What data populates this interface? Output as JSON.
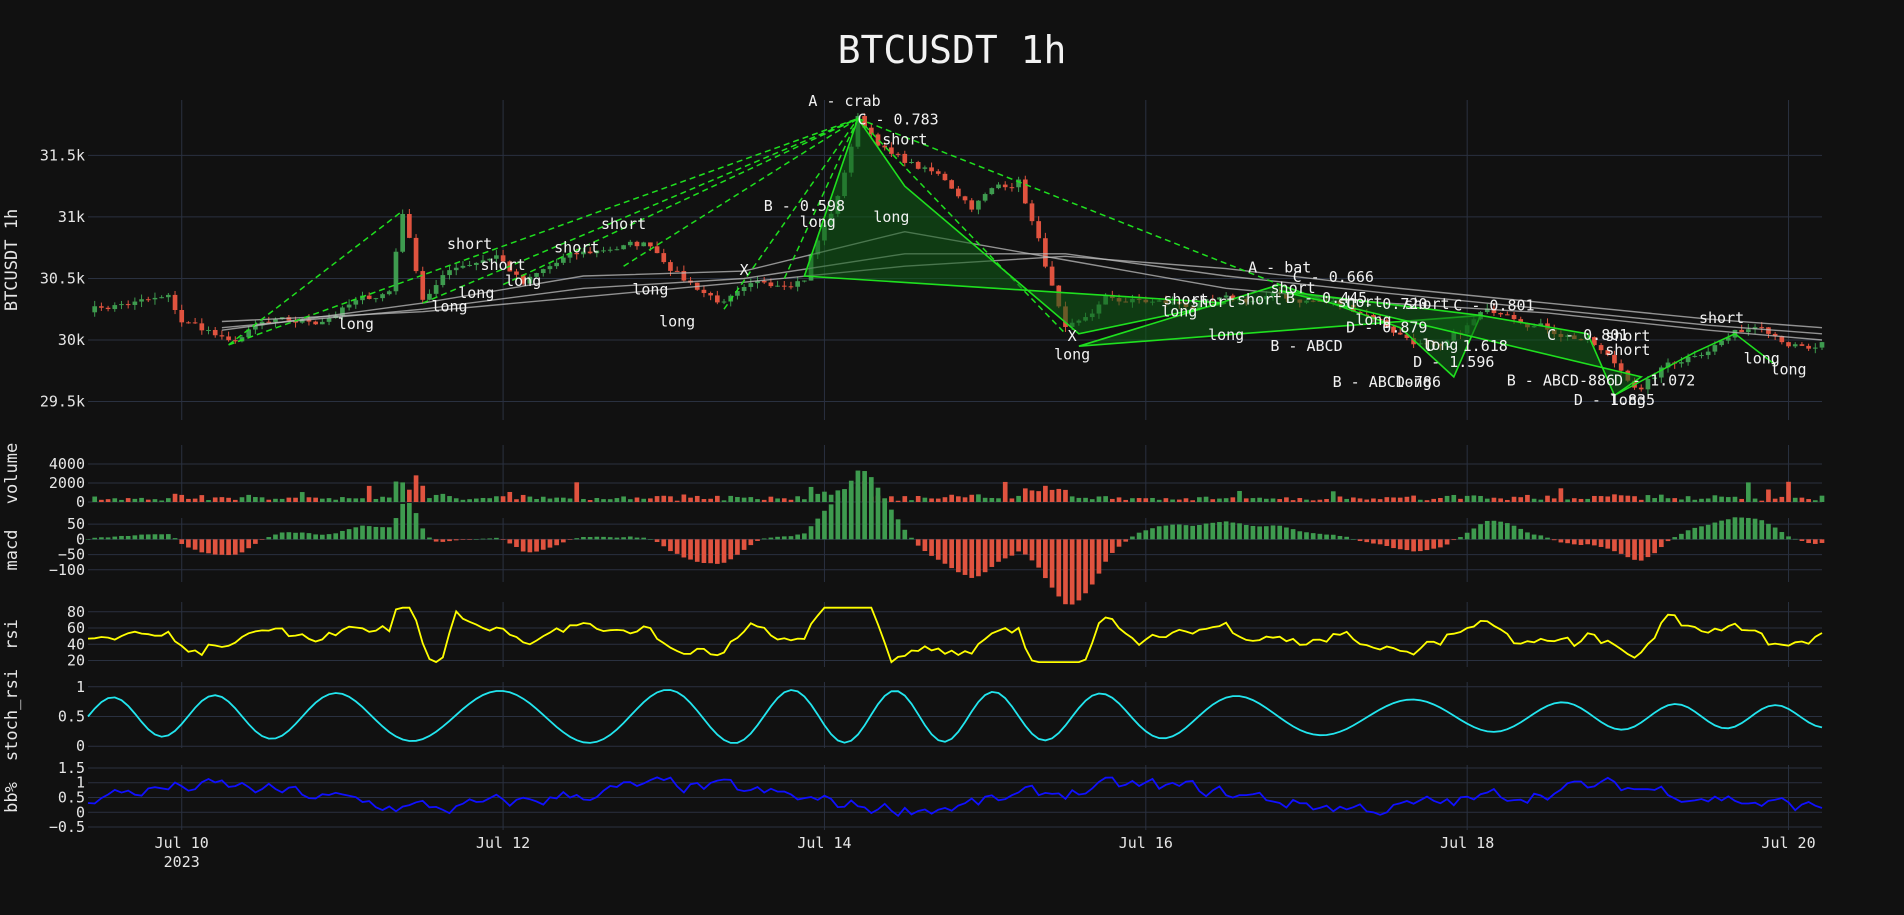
{
  "title": "BTCUSDT 1h",
  "colors": {
    "background": "#111111",
    "grid": "#2a3140",
    "up": "#3e9b4f",
    "down": "#e0533f",
    "pattern": "#1fe01f",
    "pattern_fill": "#0e5f15",
    "ma": "#bdbdbd",
    "rsi": "#ffff00",
    "stoch_rsi": "#22e6ef",
    "bb": "#1010ff"
  },
  "chart_data": {
    "type": "line",
    "x_range": [
      "2023-07-09T10:00",
      "2023-07-20T05:00"
    ],
    "x_ticks": [
      {
        "date": "2023-07-10",
        "label": "Jul 10",
        "sublabel": "2023"
      },
      {
        "date": "2023-07-12",
        "label": "Jul 12"
      },
      {
        "date": "2023-07-14",
        "label": "Jul 14"
      },
      {
        "date": "2023-07-16",
        "label": "Jul 16"
      },
      {
        "date": "2023-07-18",
        "label": "Jul 18"
      },
      {
        "date": "2023-07-20",
        "label": "Jul 20"
      }
    ],
    "panels": [
      {
        "id": "price",
        "ylabel": "BTCUSDT 1h",
        "ylim": [
          29350,
          31950
        ],
        "ticks": [
          {
            "v": 29500,
            "t": "29.5k"
          },
          {
            "v": 30000,
            "t": "30k"
          },
          {
            "v": 30500,
            "t": "30.5k"
          },
          {
            "v": 31000,
            "t": "31k"
          },
          {
            "v": 31500,
            "t": "31.5k"
          }
        ]
      },
      {
        "id": "volume",
        "ylabel": "volume",
        "ylim": [
          0,
          6000
        ],
        "ticks": [
          {
            "v": 0,
            "t": "0"
          },
          {
            "v": 2000,
            "t": "2000"
          },
          {
            "v": 4000,
            "t": "4000"
          }
        ]
      },
      {
        "id": "macd",
        "ylabel": "macd",
        "ylim": [
          -140,
          70
        ],
        "ticks": [
          {
            "v": -100,
            "t": "−100"
          },
          {
            "v": -50,
            "t": "−50"
          },
          {
            "v": 0,
            "t": "0"
          },
          {
            "v": 50,
            "t": "50"
          }
        ]
      },
      {
        "id": "rsi",
        "ylabel": "rsi",
        "ylim": [
          12,
          92
        ],
        "ticks": [
          {
            "v": 20,
            "t": "20"
          },
          {
            "v": 40,
            "t": "40"
          },
          {
            "v": 60,
            "t": "60"
          },
          {
            "v": 80,
            "t": "80"
          }
        ]
      },
      {
        "id": "stoch_rsi",
        "ylabel": "stoch_rsi",
        "ylim": [
          -0.03,
          1.08
        ],
        "ticks": [
          {
            "v": 0,
            "t": "0"
          },
          {
            "v": 0.5,
            "t": "0.5"
          },
          {
            "v": 1,
            "t": "1"
          }
        ]
      },
      {
        "id": "bb",
        "ylabel": "bb%",
        "ylim": [
          -0.6,
          1.6
        ],
        "ticks": [
          {
            "v": -0.5,
            "t": "−0.5"
          },
          {
            "v": 0,
            "t": "0"
          },
          {
            "v": 0.5,
            "t": "0.5"
          },
          {
            "v": 1,
            "t": "1"
          },
          {
            "v": 1.5,
            "t": "1.5"
          }
        ]
      }
    ],
    "price_path": [
      [
        "2023-07-09T10:00",
        30260
      ],
      [
        "2023-07-09T22:00",
        30330
      ],
      [
        "2023-07-10T00:00",
        30150
      ],
      [
        "2023-07-10T04:00",
        30080
      ],
      [
        "2023-07-10T07:00",
        29960
      ],
      [
        "2023-07-10T12:00",
        30120
      ],
      [
        "2023-07-10T20:00",
        30150
      ],
      [
        "2023-07-11T02:00",
        30300
      ],
      [
        "2023-07-11T07:00",
        30400
      ],
      [
        "2023-07-11T09:00",
        31050
      ],
      [
        "2023-07-11T12:00",
        30350
      ],
      [
        "2023-07-11T17:00",
        30600
      ],
      [
        "2023-07-11T23:00",
        30700
      ],
      [
        "2023-07-12T03:00",
        30450
      ],
      [
        "2023-07-12T09:00",
        30650
      ],
      [
        "2023-07-12T16:00",
        30750
      ],
      [
        "2023-07-12T22:00",
        30780
      ],
      [
        "2023-07-13T03:00",
        30500
      ],
      [
        "2023-07-13T09:00",
        30300
      ],
      [
        "2023-07-13T15:00",
        30450
      ],
      [
        "2023-07-13T21:00",
        30520
      ],
      [
        "2023-07-13T22:00",
        30700
      ],
      [
        "2023-07-14T02:00",
        31150
      ],
      [
        "2023-07-14T05:00",
        31800
      ],
      [
        "2023-07-14T10:00",
        31500
      ],
      [
        "2023-07-14T18:00",
        31300
      ],
      [
        "2023-07-14T22:00",
        31100
      ],
      [
        "2023-07-15T02:00",
        31250
      ],
      [
        "2023-07-15T05:00",
        31300
      ],
      [
        "2023-07-15T08:00",
        30800
      ],
      [
        "2023-07-15T12:00",
        30050
      ],
      [
        "2023-07-15T14:00",
        30100
      ],
      [
        "2023-07-15T18:00",
        30330
      ],
      [
        "2023-07-16T02:00",
        30300
      ],
      [
        "2023-07-16T08:00",
        30280
      ],
      [
        "2023-07-16T20:00",
        30350
      ],
      [
        "2023-07-17T04:00",
        30300
      ],
      [
        "2023-07-17T10:00",
        30200
      ],
      [
        "2023-07-17T14:00",
        30050
      ],
      [
        "2023-07-17T20:00",
        29900
      ],
      [
        "2023-07-18T02:00",
        30200
      ],
      [
        "2023-07-18T06:00",
        30250
      ],
      [
        "2023-07-18T12:00",
        30100
      ],
      [
        "2023-07-18T18:00",
        30000
      ],
      [
        "2023-07-18T22:00",
        29800
      ],
      [
        "2023-07-19T02:00",
        29600
      ],
      [
        "2023-07-19T06:00",
        29800
      ],
      [
        "2023-07-19T10:00",
        29900
      ],
      [
        "2023-07-19T16:00",
        30050
      ],
      [
        "2023-07-19T20:00",
        30150
      ],
      [
        "2023-07-20T00:00",
        30000
      ],
      [
        "2023-07-20T03:00",
        29900
      ],
      [
        "2023-07-20T05:00",
        29950
      ]
    ],
    "moving_averages": [
      {
        "points": [
          [
            "2023-07-10T06:00",
            30080
          ],
          [
            "2023-07-11T12:00",
            30300
          ],
          [
            "2023-07-12T12:00",
            30520
          ],
          [
            "2023-07-13T12:00",
            30560
          ],
          [
            "2023-07-14T12:00",
            30880
          ],
          [
            "2023-07-15T12:00",
            30650
          ],
          [
            "2023-07-16T12:00",
            30420
          ],
          [
            "2023-07-17T12:00",
            30300
          ],
          [
            "2023-07-18T12:00",
            30220
          ],
          [
            "2023-07-19T12:00",
            30080
          ],
          [
            "2023-07-20T05:00",
            30000
          ]
        ]
      },
      {
        "points": [
          [
            "2023-07-10T06:00",
            30100
          ],
          [
            "2023-07-11T12:00",
            30250
          ],
          [
            "2023-07-12T12:00",
            30420
          ],
          [
            "2023-07-13T12:00",
            30500
          ],
          [
            "2023-07-14T12:00",
            30700
          ],
          [
            "2023-07-15T12:00",
            30700
          ],
          [
            "2023-07-16T12:00",
            30520
          ],
          [
            "2023-07-17T12:00",
            30380
          ],
          [
            "2023-07-18T12:00",
            30250
          ],
          [
            "2023-07-19T12:00",
            30120
          ],
          [
            "2023-07-20T05:00",
            30050
          ]
        ]
      },
      {
        "points": [
          [
            "2023-07-10T06:00",
            30150
          ],
          [
            "2023-07-11T12:00",
            30230
          ],
          [
            "2023-07-12T12:00",
            30350
          ],
          [
            "2023-07-13T12:00",
            30470
          ],
          [
            "2023-07-14T12:00",
            30600
          ],
          [
            "2023-07-15T12:00",
            30680
          ],
          [
            "2023-07-16T12:00",
            30580
          ],
          [
            "2023-07-17T12:00",
            30430
          ],
          [
            "2023-07-18T12:00",
            30300
          ],
          [
            "2023-07-19T12:00",
            30170
          ],
          [
            "2023-07-20T05:00",
            30100
          ]
        ]
      }
    ],
    "patterns": [
      {
        "style": "dashed",
        "filled": false,
        "points": [
          [
            "2023-07-10T07:00",
            29960
          ],
          [
            "2023-07-14T05:00",
            31800
          ]
        ]
      },
      {
        "style": "dashed",
        "filled": false,
        "points": [
          [
            "2023-07-10T07:00",
            29960
          ],
          [
            "2023-07-11T09:00",
            31050
          ]
        ]
      },
      {
        "style": "dashed",
        "filled": false,
        "points": [
          [
            "2023-07-11T12:00",
            30300
          ],
          [
            "2023-07-14T05:00",
            31800
          ]
        ]
      },
      {
        "style": "dashed",
        "filled": false,
        "points": [
          [
            "2023-07-12T00:00",
            30450
          ],
          [
            "2023-07-14T05:00",
            31800
          ]
        ]
      },
      {
        "style": "dashed",
        "filled": false,
        "points": [
          [
            "2023-07-12T18:00",
            30600
          ],
          [
            "2023-07-14T05:00",
            31800
          ]
        ]
      },
      {
        "style": "dashed",
        "filled": false,
        "points": [
          [
            "2023-07-13T09:00",
            30250
          ],
          [
            "2023-07-14T05:00",
            31800
          ]
        ]
      },
      {
        "style": "dashed",
        "filled": false,
        "points": [
          [
            "2023-07-13T18:00",
            30500
          ],
          [
            "2023-07-14T05:00",
            31800
          ]
        ]
      },
      {
        "style": "dashed",
        "filled": false,
        "points": [
          [
            "2023-07-14T05:00",
            31800
          ],
          [
            "2023-07-15T12:00",
            30050
          ]
        ]
      },
      {
        "style": "dashed",
        "filled": false,
        "points": [
          [
            "2023-07-14T05:00",
            31800
          ],
          [
            "2023-07-16T20:00",
            30450
          ]
        ]
      },
      {
        "style": "solid",
        "filled": true,
        "points": [
          [
            "2023-07-13T21:00",
            30520
          ],
          [
            "2023-07-14T05:00",
            31800
          ],
          [
            "2023-07-14T12:00",
            31250
          ],
          [
            "2023-07-15T14:00",
            30050
          ],
          [
            "2023-07-16T12:00",
            30300
          ]
        ]
      },
      {
        "style": "solid",
        "filled": true,
        "points": [
          [
            "2023-07-15T14:00",
            29950
          ],
          [
            "2023-07-16T20:00",
            30450
          ],
          [
            "2023-07-17T14:00",
            30100
          ],
          [
            "2023-07-17T22:00",
            29700
          ],
          [
            "2023-07-18T02:00",
            30200
          ]
        ]
      },
      {
        "style": "solid",
        "filled": true,
        "points": [
          [
            "2023-07-16T20:00",
            30400
          ],
          [
            "2023-07-18T02:00",
            30200
          ],
          [
            "2023-07-18T18:00",
            30050
          ],
          [
            "2023-07-18T22:00",
            29550
          ],
          [
            "2023-07-19T02:00",
            29700
          ]
        ]
      },
      {
        "style": "solid",
        "filled": false,
        "points": [
          [
            "2023-07-18T22:00",
            29550
          ],
          [
            "2023-07-19T10:00",
            29900
          ],
          [
            "2023-07-19T16:00",
            30050
          ],
          [
            "2023-07-19T22:00",
            29800
          ]
        ]
      }
    ],
    "annotations": [
      {
        "t": "2023-07-14T03:00",
        "v": 31900,
        "text": "A - crab"
      },
      {
        "t": "2023-07-14T11:00",
        "v": 31750,
        "text": "C - 0.783"
      },
      {
        "t": "2023-07-14T12:00",
        "v": 31590,
        "text": "short"
      },
      {
        "t": "2023-07-13T21:00",
        "v": 31050,
        "text": "B - 0.598"
      },
      {
        "t": "2023-07-13T23:00",
        "v": 30920,
        "text": "long"
      },
      {
        "t": "2023-07-14T10:00",
        "v": 30960,
        "text": "long"
      },
      {
        "t": "2023-07-11T19:00",
        "v": 30740,
        "text": "short"
      },
      {
        "t": "2023-07-12T00:00",
        "v": 30570,
        "text": "short"
      },
      {
        "t": "2023-07-12T11:00",
        "v": 30710,
        "text": "short"
      },
      {
        "t": "2023-07-12T18:00",
        "v": 30900,
        "text": "short"
      },
      {
        "t": "2023-07-11T02:00",
        "v": 30090,
        "text": "long"
      },
      {
        "t": "2023-07-11T16:00",
        "v": 30230,
        "text": "long"
      },
      {
        "t": "2023-07-11T20:00",
        "v": 30340,
        "text": "long"
      },
      {
        "t": "2023-07-12T03:00",
        "v": 30440,
        "text": "long"
      },
      {
        "t": "2023-07-12T22:00",
        "v": 30370,
        "text": "long"
      },
      {
        "t": "2023-07-13T02:00",
        "v": 30110,
        "text": "long"
      },
      {
        "t": "2023-07-13T12:00",
        "v": 30530,
        "text": "X"
      },
      {
        "t": "2023-07-15T13:00",
        "v": 29990,
        "text": "X"
      },
      {
        "t": "2023-07-15T13:00",
        "v": 29840,
        "text": "long"
      },
      {
        "t": "2023-07-16T06:00",
        "v": 30290,
        "text": "short"
      },
      {
        "t": "2023-07-16T10:00",
        "v": 30270,
        "text": "short"
      },
      {
        "t": "2023-07-16T05:00",
        "v": 30190,
        "text": "long"
      },
      {
        "t": "2023-07-16T12:00",
        "v": 30000,
        "text": "long"
      },
      {
        "t": "2023-07-16T20:00",
        "v": 30550,
        "text": "A - bat"
      },
      {
        "t": "2023-07-17T04:00",
        "v": 30470,
        "text": "C - 0.666"
      },
      {
        "t": "2023-07-16T22:00",
        "v": 30380,
        "text": "short"
      },
      {
        "t": "2023-07-16T17:00",
        "v": 30290,
        "text": "short"
      },
      {
        "t": "2023-07-17T03:00",
        "v": 30300,
        "text": "B - 0.445"
      },
      {
        "t": "2023-07-17T08:00",
        "v": 30270,
        "text": "short"
      },
      {
        "t": "2023-07-17T12:00",
        "v": 30250,
        "text": "C - 0.720"
      },
      {
        "t": "2023-07-17T18:00",
        "v": 30250,
        "text": "short"
      },
      {
        "t": "2023-07-18T04:00",
        "v": 30240,
        "text": "C - 0.801"
      },
      {
        "t": "2023-07-17T10:00",
        "v": 30120,
        "text": "long"
      },
      {
        "t": "2023-07-17T12:00",
        "v": 30060,
        "text": "D - 0.879"
      },
      {
        "t": "2023-07-17T20:00",
        "v": 29920,
        "text": "long"
      },
      {
        "t": "2023-07-17T00:00",
        "v": 29910,
        "text": "B - ABCD"
      },
      {
        "t": "2023-07-18T00:00",
        "v": 29910,
        "text": "D - 1.618"
      },
      {
        "t": "2023-07-17T22:00",
        "v": 29780,
        "text": "D - 1.596"
      },
      {
        "t": "2023-07-17T12:00",
        "v": 29620,
        "text": "B - ABCD-786"
      },
      {
        "t": "2023-07-17T16:00",
        "v": 29620,
        "text": "long"
      },
      {
        "t": "2023-07-18T14:00",
        "v": 29630,
        "text": "B - ABCD-886"
      },
      {
        "t": "2023-07-19T04:00",
        "v": 29630,
        "text": "D - 1.072"
      },
      {
        "t": "2023-07-18T18:00",
        "v": 30000,
        "text": "C - 0.801"
      },
      {
        "t": "2023-07-19T00:00",
        "v": 29990,
        "text": "short"
      },
      {
        "t": "2023-07-19T00:00",
        "v": 29880,
        "text": "short"
      },
      {
        "t": "2023-07-19T14:00",
        "v": 30140,
        "text": "short"
      },
      {
        "t": "2023-07-18T22:00",
        "v": 29470,
        "text": "D - 1.835"
      },
      {
        "t": "2023-07-19T00:00",
        "v": 29470,
        "text": "long"
      },
      {
        "t": "2023-07-19T20:00",
        "v": 29810,
        "text": "long"
      },
      {
        "t": "2023-07-20T00:00",
        "v": 29720,
        "text": "long"
      }
    ]
  }
}
